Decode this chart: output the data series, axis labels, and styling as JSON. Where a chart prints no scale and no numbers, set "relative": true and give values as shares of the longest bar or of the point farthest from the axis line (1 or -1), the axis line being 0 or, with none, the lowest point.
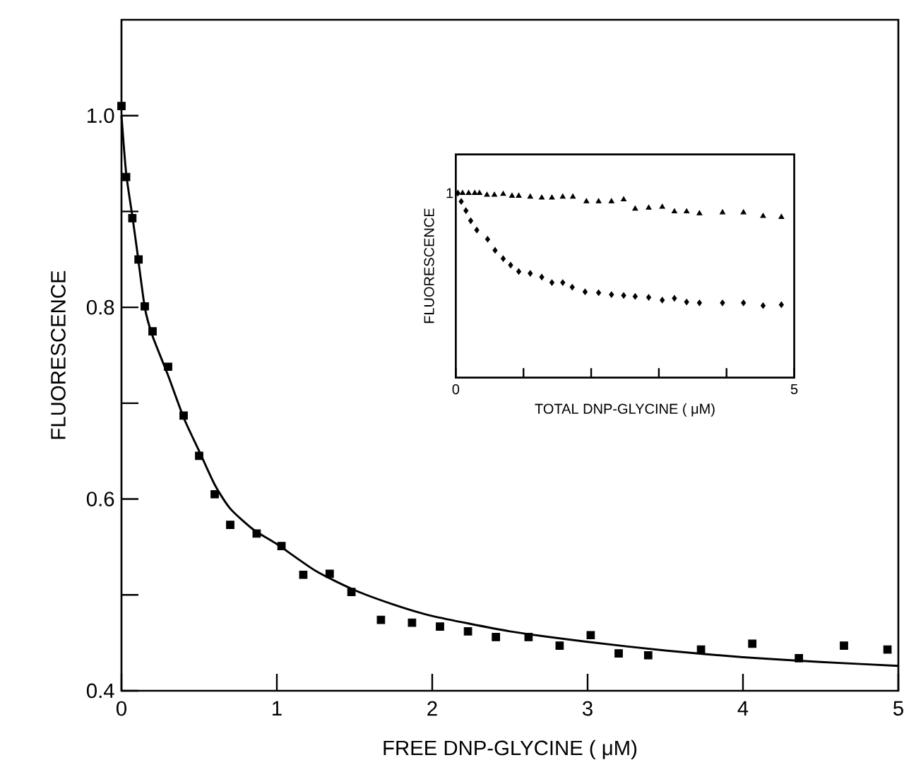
{
  "chart_data": [
    {
      "type": "scatter",
      "xlabel": "FREE DNP-GLYCINE ( μM)",
      "ylabel": "FLUORESCENCE",
      "xlim": [
        0,
        5
      ],
      "ylim": [
        0.4,
        1.1
      ],
      "xticks": [
        0,
        1,
        2,
        3,
        4,
        5
      ],
      "yticks": [
        {
          "value": 0.4,
          "label": "0.4"
        },
        {
          "value": 0.5,
          "label": null
        },
        {
          "value": 0.6,
          "label": "0.6"
        },
        {
          "value": 0.7,
          "label": null
        },
        {
          "value": 0.8,
          "label": "0.8"
        },
        {
          "value": 0.9,
          "label": null
        },
        {
          "value": 1.0,
          "label": "1.0"
        }
      ],
      "series": [
        {
          "type": "scatter",
          "marker": "square",
          "color": "#000000",
          "x": [
            0,
            0.03,
            0.07,
            0.11,
            0.15,
            0.2,
            0.3,
            0.4,
            0.5,
            0.6,
            0.7,
            0.87,
            1.03,
            1.17,
            1.34,
            1.48,
            1.67,
            1.87,
            2.05,
            2.23,
            2.41,
            2.62,
            2.82,
            3.02,
            3.2,
            3.39,
            3.73,
            4.06,
            4.36,
            4.65,
            4.93
          ],
          "values": [
            1.01,
            0.936,
            0.893,
            0.85,
            0.801,
            0.775,
            0.738,
            0.687,
            0.645,
            0.605,
            0.573,
            0.564,
            0.551,
            0.521,
            0.522,
            0.503,
            0.474,
            0.471,
            0.467,
            0.462,
            0.456,
            0.456,
            0.447,
            0.458,
            0.439,
            0.437,
            0.443,
            0.449,
            0.434,
            0.447,
            0.443
          ]
        },
        {
          "type": "line",
          "color": "#000000",
          "x": [
            0,
            0.03,
            0.07,
            0.1,
            0.15,
            0.2,
            0.3,
            0.4,
            0.5,
            0.6,
            0.7,
            0.85,
            1.0,
            1.25,
            1.5,
            1.75,
            2.0,
            2.5,
            3.0,
            3.5,
            4.0,
            4.5,
            5.0
          ],
          "values": [
            1.0,
            0.94,
            0.895,
            0.86,
            0.8,
            0.77,
            0.729,
            0.685,
            0.65,
            0.615,
            0.59,
            0.568,
            0.553,
            0.525,
            0.505,
            0.49,
            0.478,
            0.462,
            0.451,
            0.442,
            0.435,
            0.43,
            0.426
          ]
        }
      ]
    },
    {
      "type": "scatter",
      "relative": true,
      "xlabel": "TOTAL DNP-GLYCINE ( μM)",
      "ylabel": "FLUORESCENCE",
      "xlim": [
        0,
        5
      ],
      "xticks": [
        0,
        {
          "value": 1,
          "label": null
        },
        {
          "value": 2,
          "label": null
        },
        {
          "value": 3,
          "label": null
        },
        {
          "value": 4,
          "label": null
        },
        5
      ],
      "annotations": [
        {
          "text": "1",
          "x": 0,
          "y": 1
        }
      ],
      "series": [
        {
          "type": "scatter",
          "marker": "triangle",
          "color": "#000000",
          "x": [
            0.1,
            0.19,
            0.28,
            0.35,
            0.46,
            0.57,
            0.7,
            0.83,
            0.93,
            1.1,
            1.27,
            1.42,
            1.58,
            1.73,
            1.93,
            2.11,
            2.3,
            2.48,
            2.65,
            2.85,
            3.05,
            3.23,
            3.41,
            3.6,
            3.94,
            4.25,
            4.54,
            4.81
          ],
          "values": [
            1.0,
            1.0,
            1.0,
            1.0,
            0.99,
            0.99,
            0.995,
            0.985,
            0.985,
            0.98,
            0.975,
            0.975,
            0.98,
            0.98,
            0.955,
            0.955,
            0.955,
            0.965,
            0.915,
            0.92,
            0.925,
            0.9,
            0.9,
            0.89,
            0.895,
            0.895,
            0.875,
            0.87
          ]
        },
        {
          "type": "scatter",
          "marker": "diamond",
          "color": "#000000",
          "x": [
            0.03,
            0.08,
            0.15,
            0.22,
            0.31,
            0.47,
            0.58,
            0.7,
            0.81,
            0.93,
            1.1,
            1.27,
            1.42,
            1.58,
            1.72,
            1.91,
            2.11,
            2.3,
            2.48,
            2.65,
            2.85,
            3.05,
            3.23,
            3.41,
            3.6,
            3.94,
            4.25,
            4.54,
            4.81
          ],
          "values": [
            1.0,
            0.955,
            0.905,
            0.85,
            0.8,
            0.75,
            0.69,
            0.645,
            0.61,
            0.575,
            0.565,
            0.545,
            0.515,
            0.515,
            0.49,
            0.465,
            0.46,
            0.45,
            0.445,
            0.44,
            0.435,
            0.42,
            0.43,
            0.41,
            0.405,
            0.405,
            0.405,
            0.39,
            0.395
          ]
        }
      ]
    }
  ]
}
